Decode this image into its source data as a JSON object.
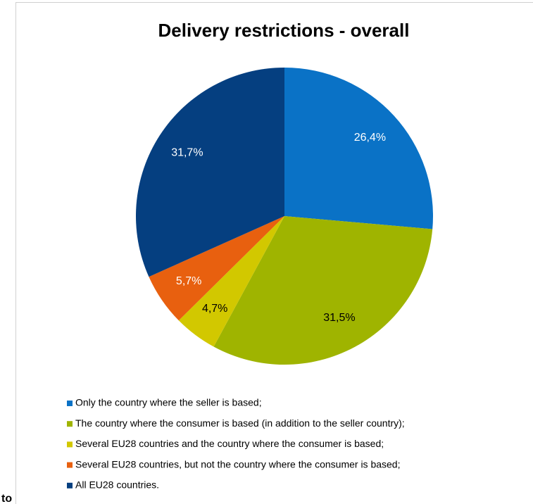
{
  "chart_data": {
    "type": "pie",
    "title": "Delivery restrictions - overall",
    "categories": [
      "Only the country where the seller is based;",
      "The country where the consumer is based (in addition to the seller country);",
      "Several EU28 countries and the country where the consumer is based;",
      "Several EU28 countries, but not the country where the consumer is based;",
      "All EU28 countries."
    ],
    "values": [
      26.4,
      31.5,
      4.7,
      5.7,
      31.7
    ],
    "value_labels": [
      "26,4%",
      "31,5%",
      "4,7%",
      "5,7%",
      "31,7%"
    ],
    "colors": [
      "#0a72c6",
      "#9fb400",
      "#d2c800",
      "#e8600f",
      "#053f80"
    ],
    "legend": "bottom"
  },
  "page_text": {
    "fragment": "to"
  }
}
